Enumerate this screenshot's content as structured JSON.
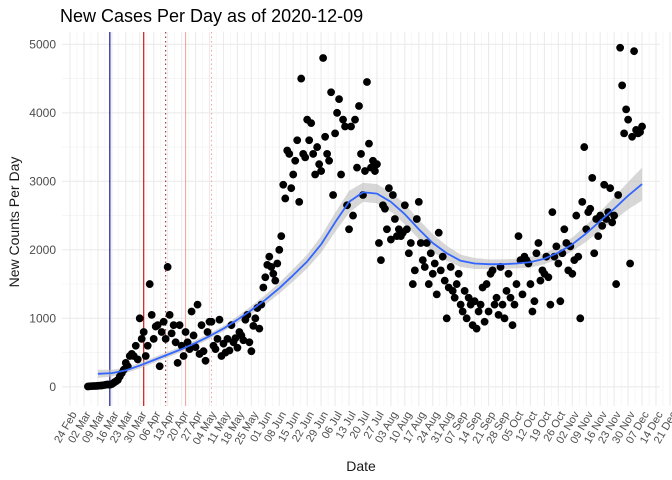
{
  "chart_data": {
    "type": "scatter",
    "title": "New Cases Per Day as of 2020-12-09",
    "xlabel": "Date",
    "ylabel": "New Counts Per Day",
    "ylim": [
      -280,
      5180
    ],
    "xlim": [
      -4,
      296
    ],
    "y_ticks": [
      0,
      1000,
      2000,
      3000,
      4000,
      5000
    ],
    "x_tick_labels": [
      "24 Feb",
      "02 Mar",
      "09 Mar",
      "16 Mar",
      "23 Mar",
      "30 Mar",
      "06 Apr",
      "13 Apr",
      "20 Apr",
      "27 Apr",
      "04 May",
      "11 May",
      "18 May",
      "25 May",
      "01 Jun",
      "08 Jun",
      "15 Jun",
      "22 Jun",
      "29 Jun",
      "06 Jul",
      "13 Jul",
      "20 Jul",
      "27 Jul",
      "03 Aug",
      "10 Aug",
      "17 Aug",
      "24 Aug",
      "31 Aug",
      "07 Sep",
      "14 Sep",
      "21 Sep",
      "28 Sep",
      "05 Oct",
      "12 Oct",
      "19 Oct",
      "26 Oct",
      "02 Nov",
      "09 Nov",
      "16 Nov",
      "23 Nov",
      "30 Nov",
      "07 Dec",
      "14 Dec",
      "21 Dec"
    ],
    "x_tick_spacing_days": 7,
    "vlines": [
      {
        "day": 20,
        "color": "#00008b",
        "style": "solid"
      },
      {
        "day": 37,
        "color": "#cc0000",
        "style": "solid"
      },
      {
        "day": 48,
        "color": "#a52a2a",
        "style": "dotted"
      },
      {
        "day": 58,
        "color": "#f4a6a6",
        "style": "solid"
      },
      {
        "day": 71,
        "color": "#f4a6a6",
        "style": "dotted"
      }
    ],
    "smooth": {
      "color": "#3366ff",
      "band_color": "#bebebe",
      "x": [
        14,
        21,
        28,
        35,
        42,
        49,
        56,
        63,
        70,
        77,
        84,
        91,
        98,
        105,
        112,
        119,
        126,
        133,
        140,
        147,
        154,
        161,
        168,
        175,
        182,
        189,
        196,
        203,
        210,
        217,
        224,
        231,
        238,
        245,
        252,
        259,
        266,
        273,
        280,
        287
      ],
      "y": [
        190,
        200,
        240,
        310,
        390,
        470,
        550,
        640,
        740,
        850,
        980,
        1120,
        1270,
        1440,
        1630,
        1830,
        2080,
        2400,
        2700,
        2840,
        2820,
        2700,
        2520,
        2300,
        2100,
        1950,
        1840,
        1800,
        1790,
        1790,
        1800,
        1820,
        1870,
        1960,
        2080,
        2240,
        2420,
        2600,
        2790,
        2960
      ],
      "lower": [
        130,
        150,
        200,
        270,
        350,
        430,
        510,
        600,
        700,
        810,
        930,
        1060,
        1200,
        1360,
        1540,
        1730,
        1960,
        2260,
        2540,
        2700,
        2680,
        2560,
        2370,
        2160,
        1970,
        1840,
        1750,
        1720,
        1720,
        1720,
        1730,
        1740,
        1790,
        1870,
        1980,
        2120,
        2280,
        2430,
        2590,
        2720
      ],
      "upper": [
        250,
        250,
        280,
        350,
        430,
        510,
        590,
        680,
        780,
        890,
        1030,
        1180,
        1340,
        1520,
        1720,
        1930,
        2200,
        2540,
        2860,
        2980,
        2960,
        2840,
        2670,
        2440,
        2230,
        2060,
        1930,
        1880,
        1860,
        1860,
        1870,
        1900,
        1950,
        2050,
        2180,
        2360,
        2560,
        2770,
        2990,
        3200
      ]
    },
    "points": {
      "color": "#000000",
      "x": [
        9,
        10,
        11,
        12,
        13,
        14,
        15,
        16,
        17,
        18,
        19,
        20,
        21,
        22,
        23,
        24,
        25,
        26,
        27,
        28,
        29,
        30,
        31,
        32,
        33,
        34,
        35,
        36,
        37,
        38,
        39,
        40,
        41,
        42,
        43,
        44,
        45,
        46,
        47,
        48,
        49,
        50,
        51,
        52,
        53,
        54,
        55,
        56,
        57,
        58,
        59,
        60,
        61,
        62,
        63,
        64,
        65,
        66,
        67,
        68,
        69,
        70,
        71,
        72,
        73,
        74,
        75,
        76,
        77,
        78,
        79,
        80,
        81,
        82,
        83,
        84,
        85,
        86,
        87,
        88,
        89,
        90,
        91,
        92,
        93,
        94,
        95,
        96,
        97,
        98,
        99,
        100,
        101,
        102,
        103,
        104,
        105,
        106,
        107,
        108,
        109,
        110,
        111,
        112,
        113,
        114,
        115,
        116,
        117,
        118,
        119,
        120,
        121,
        122,
        123,
        124,
        125,
        126,
        127,
        128,
        129,
        130,
        131,
        132,
        133,
        134,
        135,
        136,
        137,
        138,
        139,
        140,
        141,
        142,
        143,
        144,
        145,
        146,
        147,
        148,
        149,
        150,
        151,
        152,
        153,
        154,
        155,
        156,
        157,
        158,
        159,
        160,
        161,
        162,
        163,
        164,
        165,
        166,
        167,
        168,
        169,
        170,
        171,
        172,
        173,
        174,
        175,
        176,
        177,
        178,
        179,
        180,
        181,
        182,
        183,
        184,
        185,
        186,
        187,
        188,
        189,
        190,
        191,
        192,
        193,
        194,
        195,
        196,
        197,
        198,
        199,
        200,
        201,
        202,
        203,
        204,
        205,
        206,
        207,
        208,
        209,
        210,
        211,
        212,
        213,
        214,
        215,
        216,
        217,
        218,
        219,
        220,
        221,
        222,
        223,
        224,
        225,
        226,
        227,
        228,
        229,
        230,
        231,
        232,
        233,
        234,
        235,
        236,
        237,
        238,
        239,
        240,
        241,
        242,
        243,
        244,
        245,
        246,
        247,
        248,
        249,
        250,
        251,
        252,
        253,
        254,
        255,
        256,
        257,
        258,
        259,
        260,
        261,
        262,
        263,
        264,
        265,
        266,
        267,
        268,
        269,
        270,
        271,
        272,
        273,
        274,
        275,
        276,
        277,
        278,
        279,
        280,
        281,
        282,
        283,
        284,
        285,
        286,
        287
      ],
      "y": [
        5,
        8,
        10,
        12,
        12,
        15,
        18,
        20,
        25,
        30,
        35,
        30,
        40,
        60,
        80,
        100,
        150,
        200,
        250,
        350,
        300,
        450,
        480,
        450,
        600,
        400,
        1000,
        700,
        800,
        450,
        600,
        1500,
        1050,
        700,
        880,
        900,
        300,
        800,
        950,
        700,
        1750,
        1050,
        780,
        900,
        650,
        350,
        900,
        600,
        450,
        800,
        650,
        550,
        1100,
        750,
        580,
        1200,
        480,
        900,
        520,
        380,
        800,
        950,
        950,
        600,
        550,
        700,
        980,
        450,
        630,
        500,
        700,
        530,
        900,
        650,
        710,
        570,
        800,
        750,
        680,
        980,
        1050,
        650,
        520,
        890,
        1000,
        1150,
        850,
        1200,
        1450,
        1600,
        1780,
        1900,
        1750,
        1650,
        1550,
        1800,
        2000,
        2200,
        2950,
        2750,
        3450,
        3400,
        2900,
        3100,
        3300,
        3600,
        2700,
        4500,
        3400,
        3350,
        3900,
        3600,
        3850,
        3400,
        3100,
        3500,
        3250,
        3150,
        4800,
        3650,
        3400,
        3300,
        4300,
        2800,
        3700,
        4000,
        4200,
        3100,
        3900,
        3800,
        2650,
        2300,
        3800,
        2500,
        3900,
        3200,
        4100,
        3400,
        2800,
        3150,
        4450,
        3550,
        3200,
        3300,
        3150,
        3250,
        2100,
        1850,
        2650,
        2600,
        2300,
        2900,
        2150,
        2800,
        2450,
        2200,
        2300,
        2200,
        2250,
        2650,
        2300,
        1950,
        2100,
        1500,
        1700,
        2450,
        2700,
        2100,
        1850,
        1750,
        2100,
        1500,
        1950,
        1650,
        1800,
        1350,
        2250,
        1700,
        1900,
        1550,
        1000,
        1450,
        1750,
        1400,
        1300,
        1500,
        1650,
        1200,
        1100,
        1400,
        1000,
        1300,
        1200,
        900,
        1250,
        850,
        1100,
        1200,
        1450,
        950,
        1500,
        1100,
        1650,
        1700,
        1200,
        1300,
        1050,
        1750,
        1200,
        1000,
        1400,
        1650,
        1300,
        900,
        1200,
        1500,
        2200,
        1850,
        1350,
        1900,
        1850,
        1800,
        1500,
        1100,
        1250,
        1950,
        2100,
        1550,
        1700,
        1650,
        1900,
        1600,
        1200,
        2550,
        1900,
        2050,
        1800,
        1250,
        1950,
        2300,
        2100,
        1700,
        2050,
        1650,
        1850,
        2500,
        1900,
        1000,
        2700,
        3500,
        2300,
        2550,
        2600,
        3050,
        1950,
        2450,
        2200,
        2500,
        2350,
        2950,
        2450,
        2550,
        2900,
        2400,
        2500,
        1500,
        2800,
        4950,
        4400,
        3700,
        4050,
        3900,
        1800,
        3650,
        4900,
        3750,
        3700,
        3720,
        3800
      ]
    }
  }
}
